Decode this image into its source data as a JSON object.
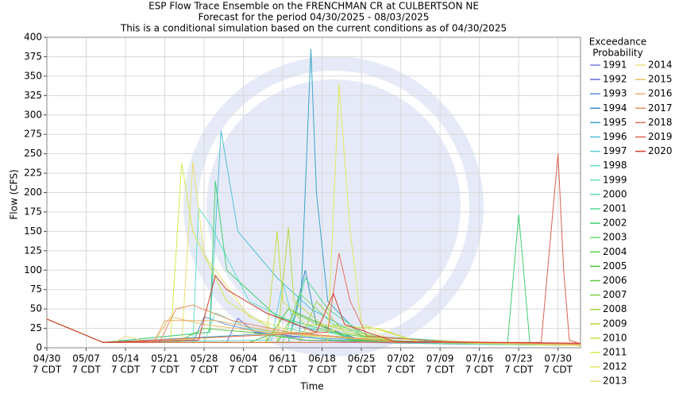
{
  "chart_data": {
    "type": "line",
    "title": "ESP Flow Trace Ensemble on the FRENCHMAN CR at CULBERTSON NE",
    "subtitle": [
      "Forecast for the period 04/30/2025 - 08/03/2025",
      "This is a conditional simulation based on the current conditions as of 04/30/2025"
    ],
    "x_label": "Time",
    "y_label": "Flow (CFS)",
    "legend_title": [
      "Exceedance",
      "Probability"
    ],
    "grid": true,
    "xlim": [
      "04/30",
      "08/03"
    ],
    "xticks": [
      {
        "value": "04/30",
        "label": [
          "04/30",
          "7 CDT"
        ]
      },
      {
        "value": "05/07",
        "label": [
          "05/07",
          "7 CDT"
        ]
      },
      {
        "value": "05/14",
        "label": [
          "05/14",
          "7 CDT"
        ]
      },
      {
        "value": "05/21",
        "label": [
          "05/21",
          "7 CDT"
        ]
      },
      {
        "value": "05/28",
        "label": [
          "05/28",
          "7 CDT"
        ]
      },
      {
        "value": "06/04",
        "label": [
          "06/04",
          "7 CDT"
        ]
      },
      {
        "value": "06/11",
        "label": [
          "06/11",
          "7 CDT"
        ]
      },
      {
        "value": "06/18",
        "label": [
          "06/18",
          "7 CDT"
        ]
      },
      {
        "value": "06/25",
        "label": [
          "06/25",
          "7 CDT"
        ]
      },
      {
        "value": "07/02",
        "label": [
          "07/02",
          "7 CDT"
        ]
      },
      {
        "value": "07/09",
        "label": [
          "07/09",
          "7 CDT"
        ]
      },
      {
        "value": "07/16",
        "label": [
          "07/16",
          "7 CDT"
        ]
      },
      {
        "value": "07/23",
        "label": [
          "07/23",
          "7 CDT"
        ]
      },
      {
        "value": "07/30",
        "label": [
          "07/30",
          "7 CDT"
        ]
      }
    ],
    "ylim": [
      0,
      400
    ],
    "yticks": [
      0,
      25,
      50,
      75,
      100,
      125,
      150,
      175,
      200,
      225,
      250,
      275,
      300,
      325,
      350,
      375,
      400
    ],
    "series": [
      {
        "name": "1991",
        "color": "#8080e0",
        "x": [
          "04/30",
          "05/10",
          "06/05",
          "06/10",
          "06/14",
          "07/01",
          "08/03"
        ],
        "values": [
          37,
          7,
          7,
          20,
          10,
          6,
          3
        ]
      },
      {
        "name": "1992",
        "color": "#6a6ad8",
        "x": [
          "04/30",
          "05/10",
          "06/01",
          "06/03",
          "06/06",
          "06/20",
          "07/10",
          "08/03"
        ],
        "values": [
          37,
          7,
          7,
          38,
          20,
          10,
          5,
          4
        ]
      },
      {
        "name": "1993",
        "color": "#5d8fd0",
        "x": [
          "04/30",
          "05/10",
          "05/26",
          "05/28",
          "06/01",
          "06/10",
          "07/10",
          "08/03"
        ],
        "values": [
          37,
          7,
          7,
          40,
          30,
          15,
          5,
          3
        ]
      },
      {
        "name": "1994",
        "color": "#3a8cc0",
        "x": [
          "04/30",
          "05/10",
          "06/12",
          "06/15",
          "06/17",
          "06/25",
          "07/20",
          "08/03"
        ],
        "values": [
          37,
          7,
          7,
          100,
          30,
          10,
          5,
          3
        ]
      },
      {
        "name": "1995",
        "color": "#38a6c8",
        "x": [
          "04/30",
          "05/10",
          "06/14",
          "06/16",
          "06/17",
          "06/19",
          "06/25",
          "07/15",
          "08/03"
        ],
        "values": [
          37,
          7,
          20,
          385,
          200,
          60,
          15,
          5,
          4
        ]
      },
      {
        "name": "1996",
        "color": "#4fbfd8",
        "x": [
          "04/30",
          "05/10",
          "05/29",
          "05/31",
          "06/03",
          "06/10",
          "06/16",
          "06/25",
          "07/20",
          "08/03"
        ],
        "values": [
          37,
          7,
          20,
          280,
          150,
          90,
          50,
          15,
          5,
          3
        ]
      },
      {
        "name": "1997",
        "color": "#60d0d8",
        "x": [
          "04/30",
          "05/10",
          "06/09",
          "06/11",
          "06/13",
          "06/25",
          "08/03"
        ],
        "values": [
          37,
          7,
          10,
          85,
          30,
          10,
          4
        ]
      },
      {
        "name": "1998",
        "color": "#60e0d0",
        "x": [
          "04/30",
          "05/10",
          "05/26",
          "05/27",
          "05/29",
          "06/05",
          "06/15",
          "07/01",
          "08/03"
        ],
        "values": [
          37,
          7,
          7,
          180,
          160,
          60,
          25,
          8,
          4
        ]
      },
      {
        "name": "1999",
        "color": "#70e0c0",
        "x": [
          "04/30",
          "05/10",
          "05/28",
          "05/30",
          "06/05",
          "06/20",
          "08/03"
        ],
        "values": [
          37,
          7,
          7,
          45,
          25,
          10,
          4
        ]
      },
      {
        "name": "2000",
        "color": "#60d8b0",
        "x": [
          "04/30",
          "05/10",
          "06/10",
          "06/12",
          "06/18",
          "07/01",
          "08/03"
        ],
        "values": [
          37,
          7,
          7,
          25,
          15,
          6,
          3
        ]
      },
      {
        "name": "2001",
        "color": "#50d890",
        "x": [
          "04/30",
          "05/10",
          "06/12",
          "06/15",
          "06/19",
          "06/26",
          "07/20",
          "08/03"
        ],
        "values": [
          37,
          7,
          7,
          90,
          50,
          15,
          5,
          3
        ]
      },
      {
        "name": "2002",
        "color": "#40d070",
        "x": [
          "04/30",
          "05/10",
          "05/29",
          "05/30",
          "06/01",
          "06/10",
          "06/25",
          "07/21",
          "07/23",
          "07/25",
          "08/03"
        ],
        "values": [
          37,
          7,
          20,
          215,
          100,
          40,
          10,
          5,
          172,
          5,
          4
        ]
      },
      {
        "name": "2003",
        "color": "#70e070",
        "x": [
          "04/30",
          "05/10",
          "06/11",
          "06/14",
          "06/20",
          "07/01",
          "08/03"
        ],
        "values": [
          37,
          7,
          7,
          70,
          30,
          8,
          3
        ]
      },
      {
        "name": "2004",
        "color": "#60d050",
        "x": [
          "04/30",
          "05/10",
          "06/05",
          "06/10",
          "06/20",
          "07/01",
          "08/03"
        ],
        "values": [
          37,
          7,
          7,
          20,
          15,
          8,
          3
        ]
      },
      {
        "name": "2005",
        "color": "#50c040",
        "x": [
          "04/30",
          "05/10",
          "06/08",
          "06/12",
          "06/18",
          "06/23",
          "08/03"
        ],
        "values": [
          37,
          7,
          7,
          50,
          30,
          10,
          3
        ]
      },
      {
        "name": "2006",
        "color": "#60c840",
        "x": [
          "04/30",
          "05/10",
          "05/23",
          "05/28",
          "06/05",
          "06/15",
          "08/03"
        ],
        "values": [
          37,
          7,
          7,
          25,
          20,
          10,
          3
        ]
      },
      {
        "name": "2007",
        "color": "#80d040",
        "x": [
          "04/30",
          "05/10",
          "06/10",
          "06/13",
          "06/20",
          "07/01",
          "08/03"
        ],
        "values": [
          37,
          7,
          7,
          45,
          20,
          8,
          3
        ]
      },
      {
        "name": "2008",
        "color": "#a0d040",
        "x": [
          "04/30",
          "05/10",
          "06/14",
          "06/17",
          "06/22",
          "07/01",
          "08/03"
        ],
        "values": [
          37,
          7,
          7,
          60,
          20,
          8,
          3
        ]
      },
      {
        "name": "2009",
        "color": "#b8d840",
        "x": [
          "04/30",
          "05/10",
          "06/10",
          "06/12",
          "06/13",
          "06/18",
          "07/01",
          "08/03"
        ],
        "values": [
          37,
          7,
          7,
          155,
          60,
          30,
          8,
          3
        ]
      },
      {
        "name": "2010",
        "color": "#c8e040",
        "x": [
          "04/30",
          "05/10",
          "06/08",
          "06/10",
          "06/11",
          "06/15",
          "06/28",
          "07/05",
          "08/03"
        ],
        "values": [
          37,
          7,
          7,
          150,
          60,
          30,
          25,
          8,
          3
        ]
      },
      {
        "name": "2011",
        "color": "#d8e850",
        "x": [
          "04/30",
          "05/10",
          "05/22",
          "05/24",
          "05/26",
          "06/01",
          "06/10",
          "07/01",
          "08/03"
        ],
        "values": [
          37,
          7,
          7,
          238,
          150,
          60,
          20,
          8,
          3
        ]
      },
      {
        "name": "2012",
        "color": "#e0e860",
        "x": [
          "04/30",
          "05/10",
          "06/19",
          "06/21",
          "06/23",
          "06/25",
          "07/05",
          "08/03"
        ],
        "values": [
          37,
          7,
          7,
          340,
          150,
          30,
          8,
          3
        ]
      },
      {
        "name": "2013",
        "color": "#e8e070",
        "x": [
          "04/30",
          "05/10",
          "05/24",
          "05/26",
          "05/28",
          "06/05",
          "06/15",
          "08/03"
        ],
        "values": [
          37,
          7,
          7,
          240,
          120,
          40,
          15,
          3
        ]
      },
      {
        "name": "2014",
        "color": "#e8e080",
        "x": [
          "04/30",
          "05/10",
          "05/12",
          "05/14",
          "05/18",
          "06/26",
          "07/01",
          "08/03"
        ],
        "values": [
          37,
          7,
          7,
          15,
          8,
          25,
          8,
          4
        ]
      },
      {
        "name": "2015",
        "color": "#e8c060",
        "x": [
          "04/30",
          "05/10",
          "05/19",
          "05/22",
          "05/28",
          "06/08",
          "07/01",
          "08/03"
        ],
        "values": [
          37,
          7,
          7,
          40,
          30,
          20,
          8,
          4
        ]
      },
      {
        "name": "2016",
        "color": "#e8b070",
        "x": [
          "04/30",
          "05/10",
          "05/19",
          "05/21",
          "05/30",
          "06/10",
          "07/01",
          "08/03"
        ],
        "values": [
          37,
          7,
          7,
          35,
          35,
          20,
          8,
          5
        ]
      },
      {
        "name": "2017",
        "color": "#e89060",
        "x": [
          "04/30",
          "05/10",
          "05/20",
          "05/23",
          "05/26",
          "06/02",
          "06/12",
          "07/01",
          "08/03"
        ],
        "values": [
          37,
          7,
          7,
          50,
          55,
          35,
          20,
          8,
          5
        ]
      },
      {
        "name": "2018",
        "color": "#e07060",
        "x": [
          "04/30",
          "05/10",
          "06/19",
          "06/21",
          "06/23",
          "06/26",
          "07/10",
          "08/03"
        ],
        "values": [
          37,
          7,
          20,
          122,
          60,
          15,
          8,
          5
        ]
      },
      {
        "name": "2019",
        "color": "#d86050",
        "x": [
          "04/30",
          "05/10",
          "07/27",
          "07/30",
          "07/31",
          "08/01",
          "08/03"
        ],
        "values": [
          37,
          7,
          7,
          250,
          100,
          10,
          5
        ]
      },
      {
        "name": "2020",
        "color": "#d04030",
        "x": [
          "04/30",
          "05/10",
          "05/27",
          "05/30",
          "06/01",
          "06/08",
          "06/17",
          "06/20",
          "06/22",
          "07/01",
          "08/03"
        ],
        "values": [
          37,
          7,
          10,
          93,
          75,
          45,
          20,
          70,
          30,
          8,
          6
        ]
      }
    ]
  }
}
